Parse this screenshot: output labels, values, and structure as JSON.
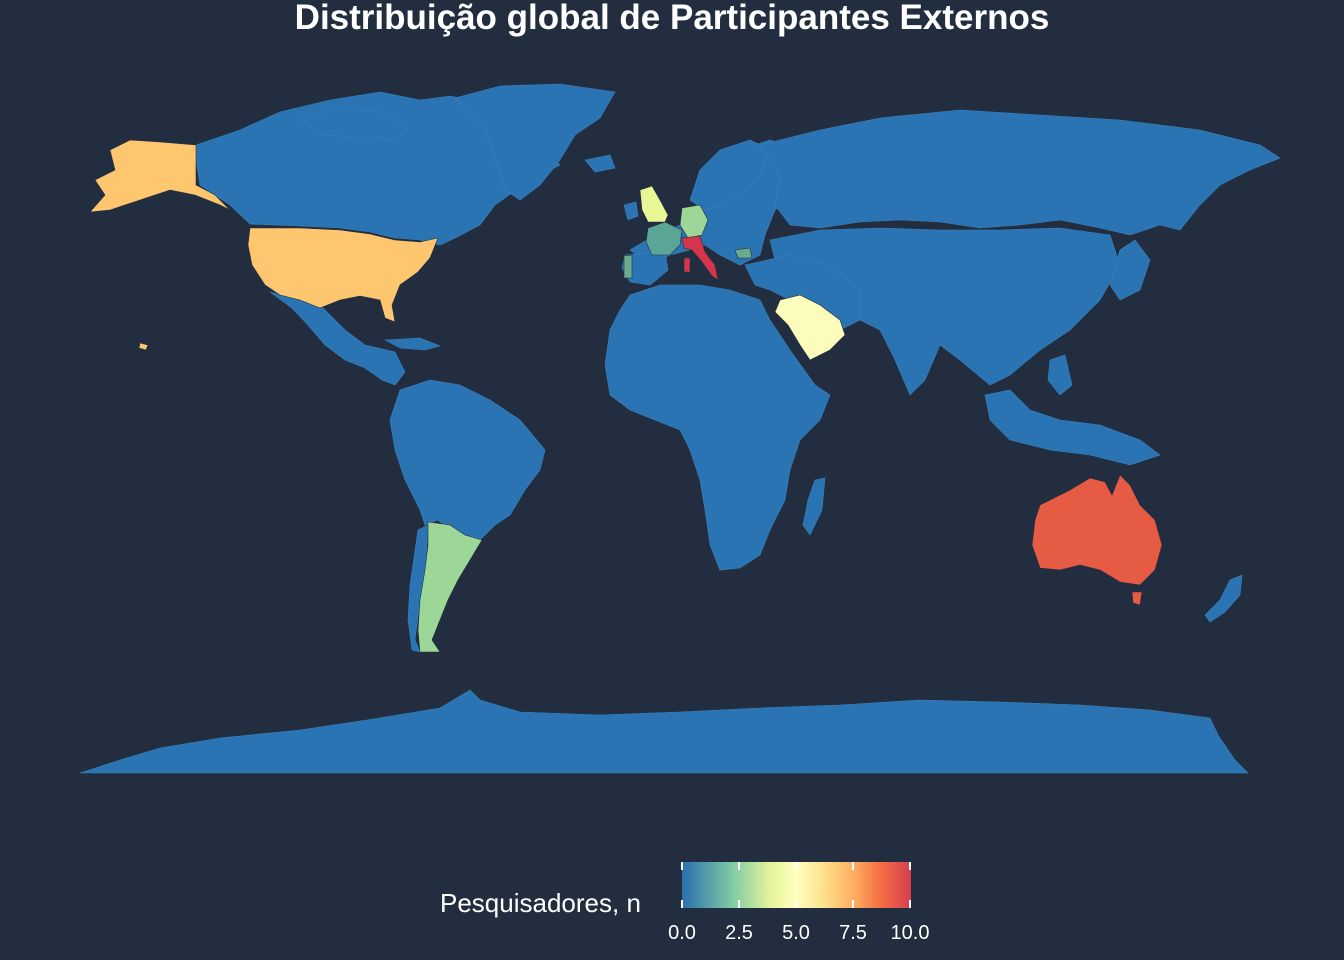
{
  "title": "Distribuição global de Participantes Externos",
  "legend": {
    "title": "Pesquisadores, n",
    "ticks": [
      "0.0",
      "2.5",
      "5.0",
      "7.5",
      "10.0"
    ],
    "min": 0,
    "max": 10,
    "palette": [
      "#2b6fae",
      "#7fcba4",
      "#e7f59a",
      "#ffffbf",
      "#fee08b",
      "#fdae61",
      "#f46d43",
      "#d53e4f"
    ]
  },
  "colors": {
    "background": "#222e3f",
    "zero_fill": "#2a74b3",
    "text": "#ffffff"
  },
  "chart_data": {
    "type": "choropleth",
    "title": "Distribuição global de Participantes Externos",
    "value_label": "Pesquisadores, n",
    "scale_range": [
      0,
      10
    ],
    "regions": [
      {
        "name": "Italy",
        "value": 10
      },
      {
        "name": "Australia",
        "value": 9
      },
      {
        "name": "United States",
        "value": 7
      },
      {
        "name": "Saudi Arabia",
        "value": 5
      },
      {
        "name": "United Kingdom",
        "value": 4
      },
      {
        "name": "Argentina",
        "value": 3
      },
      {
        "name": "Germany",
        "value": 3
      },
      {
        "name": "France",
        "value": 2
      },
      {
        "name": "Portugal",
        "value": 2
      },
      {
        "name": "Bulgaria",
        "value": 2
      },
      {
        "name": "Other countries",
        "value": 0
      }
    ]
  }
}
